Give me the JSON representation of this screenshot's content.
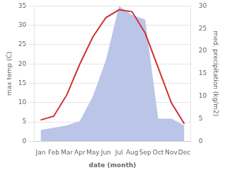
{
  "chart_data": {
    "type": "line",
    "categories": [
      "Jan",
      "Feb",
      "Mar",
      "Apr",
      "May",
      "Jun",
      "Jul",
      "Aug",
      "Sep",
      "Oct",
      "Nov",
      "Dec"
    ],
    "xlabel": "date (month)",
    "ylabel": "max temp (C)",
    "y2label": "med. precipitation (kg/m2)",
    "series": [
      {
        "type": "area",
        "axis": "y2",
        "color": "#bbc5e8",
        "values": [
          2.5,
          3.0,
          3.5,
          4.5,
          10.0,
          18.0,
          30.0,
          28.0,
          27.0,
          5.0,
          5.0,
          3.5
        ]
      },
      {
        "type": "line",
        "color": "#cc3333",
        "values": [
          5.5,
          6.5,
          12.0,
          20.0,
          27.0,
          32.0,
          34.0,
          33.5,
          28.0,
          19.0,
          10.0,
          4.5
        ]
      }
    ],
    "ylim": [
      0,
      35
    ],
    "yticks": [
      0,
      5,
      10,
      15,
      20,
      25,
      30,
      35
    ],
    "y2lim": [
      0,
      30
    ],
    "y2ticks": [
      0,
      5,
      10,
      15,
      20,
      25,
      30
    ],
    "grid": true
  }
}
